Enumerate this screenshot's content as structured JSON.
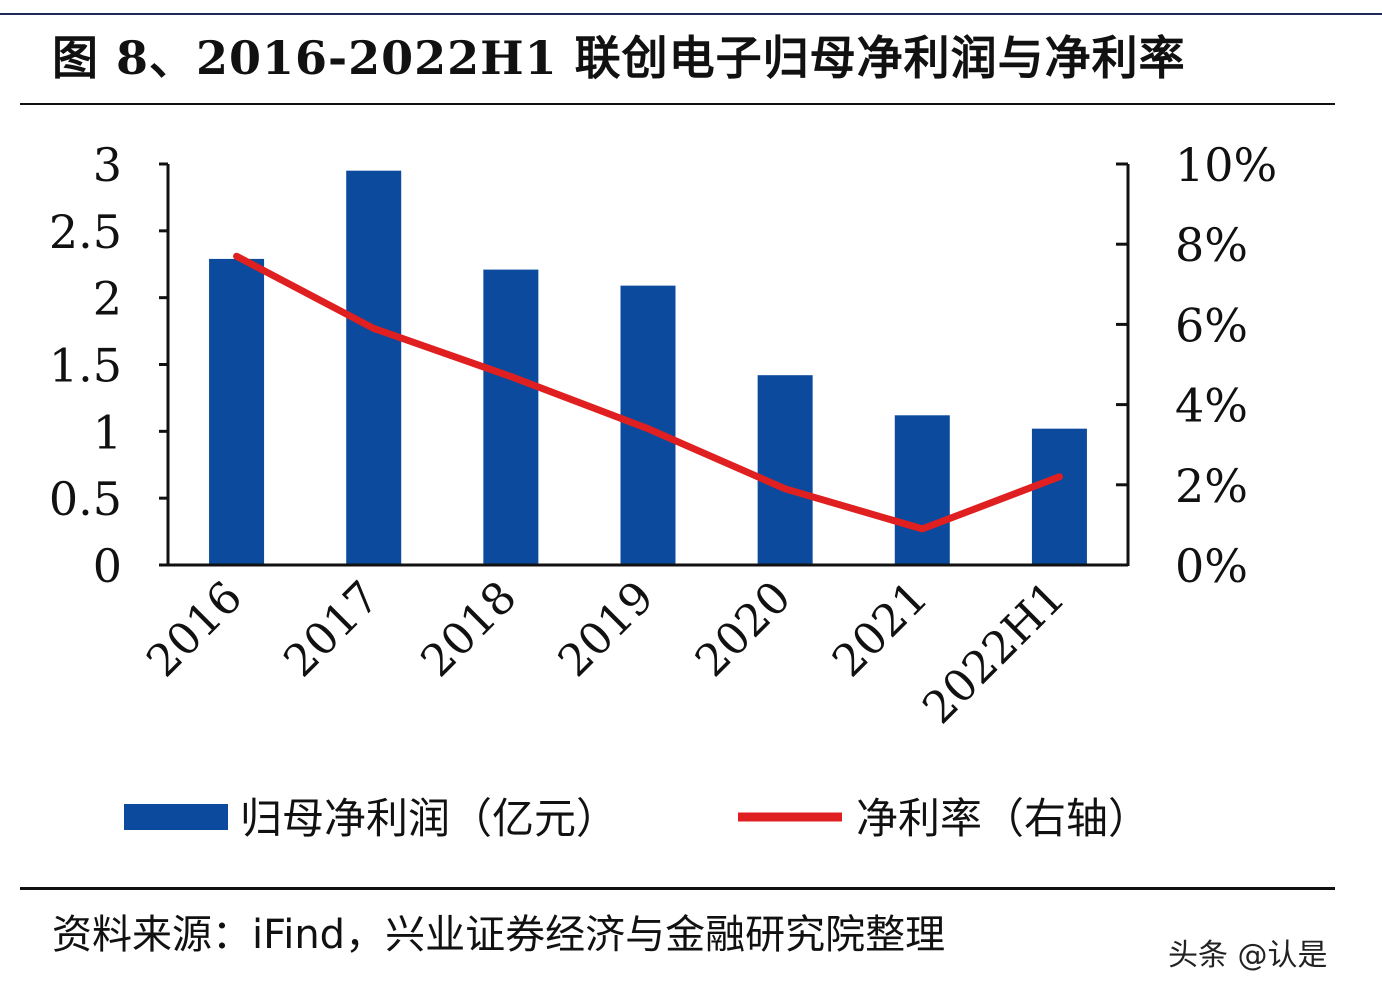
{
  "title": "图 8、2016-2022H1 联创电子归母净利润与净利率",
  "source": "资料来源：iFind，兴业证券经济与金融研究院整理",
  "watermark": "头条 @认是",
  "chart_data": {
    "type": "bar+line",
    "categories": [
      "2016",
      "2017",
      "2018",
      "2019",
      "2020",
      "2021",
      "2022H1"
    ],
    "series": [
      {
        "name": "归母净利润（亿元）",
        "type": "bar",
        "axis": "left",
        "color": "#0b4a9c",
        "values": [
          2.29,
          2.95,
          2.21,
          2.09,
          1.42,
          1.12,
          1.02
        ]
      },
      {
        "name": "净利率（右轴）",
        "type": "line",
        "axis": "right",
        "color": "#e02020",
        "values": [
          7.7,
          5.9,
          4.7,
          3.4,
          1.9,
          0.9,
          2.2
        ]
      }
    ],
    "left_axis": {
      "ylim": [
        0,
        3
      ],
      "ticks": [
        "0",
        "0.5",
        "1",
        "1.5",
        "2",
        "2.5",
        "3"
      ]
    },
    "right_axis": {
      "ylim": [
        0,
        10
      ],
      "ticks": [
        "0%",
        "2%",
        "4%",
        "6%",
        "8%",
        "10%"
      ]
    },
    "grid": false,
    "legend_position": "bottom"
  }
}
